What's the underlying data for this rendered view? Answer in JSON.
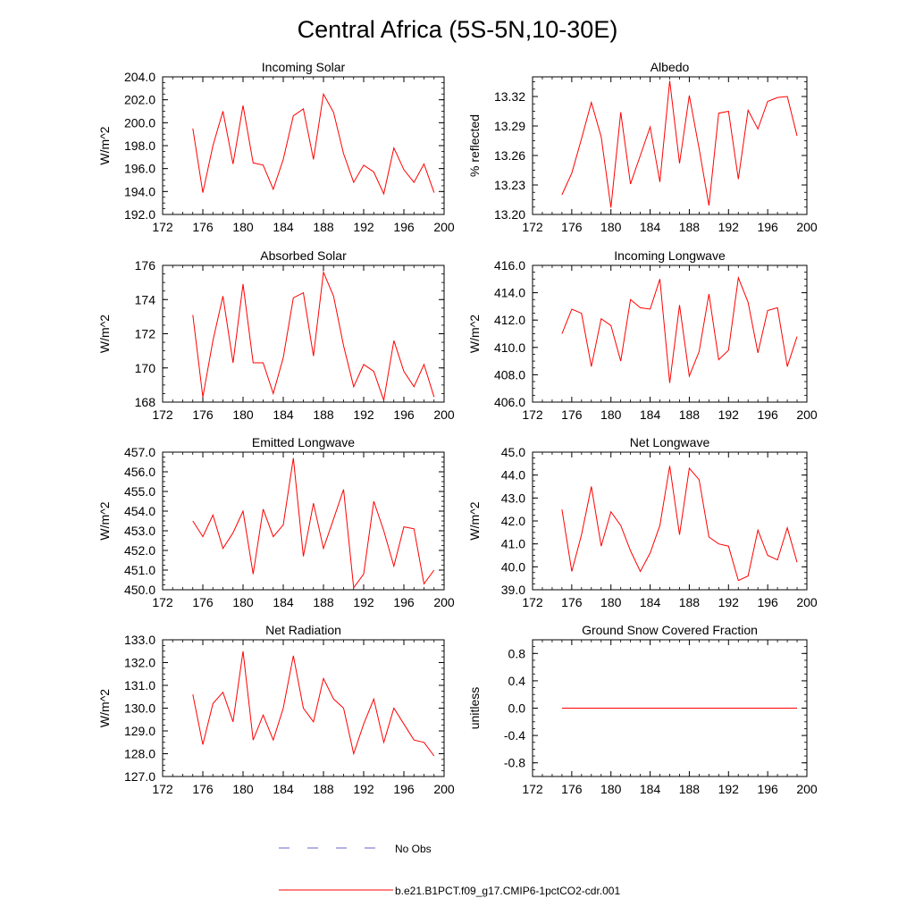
{
  "title": "Central Africa (5S-5N,10-30E)",
  "line_color": "#ff0000",
  "obs_color": "#6666cc",
  "legend": {
    "obs_label": "No Obs",
    "model_label": "b.e21.B1PCT.f09_g17.CMIP6-1pctCO2-cdr.001"
  },
  "chart_data": [
    {
      "type": "line",
      "title": "Incoming Solar",
      "ylabel": "W/m^2",
      "xlim": [
        172,
        200
      ],
      "ylim": [
        192,
        204
      ],
      "xticks": [
        172,
        176,
        180,
        184,
        188,
        192,
        196,
        200
      ],
      "yticks": [
        192,
        194,
        196,
        198,
        200,
        202,
        204
      ],
      "ytick_labels": [
        "192.0",
        "194.0",
        "196.0",
        "198.0",
        "200.0",
        "202.0",
        "204.0"
      ],
      "x": [
        175,
        176,
        177,
        178,
        179,
        180,
        181,
        182,
        183,
        184,
        185,
        186,
        187,
        188,
        189,
        190,
        191,
        192,
        193,
        194,
        195,
        196,
        197,
        198,
        199
      ],
      "values": [
        199.5,
        193.9,
        198.0,
        201.0,
        196.4,
        201.5,
        196.5,
        196.3,
        194.2,
        196.8,
        200.6,
        201.2,
        196.8,
        202.5,
        200.9,
        197.3,
        194.8,
        196.3,
        195.7,
        193.8,
        197.8,
        195.9,
        194.8,
        196.4,
        193.9
      ]
    },
    {
      "type": "line",
      "title": "Albedo",
      "ylabel": "% reflected",
      "xlim": [
        172,
        200
      ],
      "ylim": [
        13.2,
        13.34
      ],
      "xticks": [
        172,
        176,
        180,
        184,
        188,
        192,
        196,
        200
      ],
      "yticks": [
        13.2,
        13.23,
        13.26,
        13.29,
        13.32
      ],
      "ytick_labels": [
        "13.20",
        "13.23",
        "13.26",
        "13.29",
        "13.32"
      ],
      "x": [
        175,
        176,
        177,
        178,
        179,
        180,
        181,
        182,
        183,
        184,
        185,
        186,
        187,
        188,
        189,
        190,
        191,
        192,
        193,
        194,
        195,
        196,
        197,
        198,
        199
      ],
      "values": [
        13.22,
        13.242,
        13.277,
        13.314,
        13.279,
        13.207,
        13.304,
        13.231,
        13.26,
        13.289,
        13.233,
        13.336,
        13.252,
        13.321,
        13.267,
        13.209,
        13.303,
        13.305,
        13.236,
        13.306,
        13.287,
        13.315,
        13.319,
        13.32,
        13.28
      ]
    },
    {
      "type": "line",
      "title": "Absorbed Solar",
      "ylabel": "W/m^2",
      "xlim": [
        172,
        200
      ],
      "ylim": [
        168,
        176
      ],
      "xticks": [
        172,
        176,
        180,
        184,
        188,
        192,
        196,
        200
      ],
      "yticks": [
        168,
        170,
        172,
        174,
        176
      ],
      "ytick_labels": [
        "168",
        "170",
        "172",
        "174",
        "176"
      ],
      "x": [
        175,
        176,
        177,
        178,
        179,
        180,
        181,
        182,
        183,
        184,
        185,
        186,
        187,
        188,
        189,
        190,
        191,
        192,
        193,
        194,
        195,
        196,
        197,
        198,
        199
      ],
      "values": [
        173.1,
        168.3,
        171.6,
        174.2,
        170.3,
        174.9,
        170.3,
        170.3,
        168.5,
        170.6,
        174.1,
        174.4,
        170.7,
        175.6,
        174.2,
        171.3,
        168.9,
        170.2,
        169.8,
        168.1,
        171.6,
        169.8,
        168.9,
        170.2,
        168.3
      ]
    },
    {
      "type": "line",
      "title": "Incoming Longwave",
      "ylabel": "W/m^2",
      "xlim": [
        172,
        200
      ],
      "ylim": [
        406,
        416
      ],
      "xticks": [
        172,
        176,
        180,
        184,
        188,
        192,
        196,
        200
      ],
      "yticks": [
        406,
        408,
        410,
        412,
        414,
        416
      ],
      "ytick_labels": [
        "406.0",
        "408.0",
        "410.0",
        "412.0",
        "414.0",
        "416.0"
      ],
      "x": [
        175,
        176,
        177,
        178,
        179,
        180,
        181,
        182,
        183,
        184,
        185,
        186,
        187,
        188,
        189,
        190,
        191,
        192,
        193,
        194,
        195,
        196,
        197,
        198,
        199
      ],
      "values": [
        411.0,
        412.8,
        412.5,
        408.6,
        412.1,
        411.6,
        409.0,
        413.5,
        412.9,
        412.8,
        415.0,
        407.4,
        413.1,
        407.9,
        409.7,
        413.9,
        409.1,
        409.8,
        415.1,
        413.3,
        409.6,
        412.7,
        412.9,
        408.6,
        410.8
      ]
    },
    {
      "type": "line",
      "title": "Emitted Longwave",
      "ylabel": "W/m^2",
      "xlim": [
        172,
        200
      ],
      "ylim": [
        450,
        457
      ],
      "xticks": [
        172,
        176,
        180,
        184,
        188,
        192,
        196,
        200
      ],
      "yticks": [
        450,
        451,
        452,
        453,
        454,
        455,
        456,
        457
      ],
      "ytick_labels": [
        "450.0",
        "451.0",
        "452.0",
        "453.0",
        "454.0",
        "455.0",
        "456.0",
        "457.0"
      ],
      "x": [
        175,
        176,
        177,
        178,
        179,
        180,
        181,
        182,
        183,
        184,
        185,
        186,
        187,
        188,
        189,
        190,
        191,
        192,
        193,
        194,
        195,
        196,
        197,
        198,
        199
      ],
      "values": [
        453.5,
        452.7,
        453.8,
        452.1,
        452.9,
        454.0,
        450.8,
        454.1,
        452.7,
        453.3,
        456.7,
        451.7,
        454.4,
        452.1,
        453.6,
        455.1,
        450.1,
        450.8,
        454.5,
        453.0,
        451.2,
        453.2,
        453.1,
        450.3,
        451.0
      ]
    },
    {
      "type": "line",
      "title": "Net Longwave",
      "ylabel": "W/m^2",
      "xlim": [
        172,
        200
      ],
      "ylim": [
        39,
        45
      ],
      "xticks": [
        172,
        176,
        180,
        184,
        188,
        192,
        196,
        200
      ],
      "yticks": [
        39,
        40,
        41,
        42,
        43,
        44,
        45
      ],
      "ytick_labels": [
        "39.0",
        "40.0",
        "41.0",
        "42.0",
        "43.0",
        "44.0",
        "45.0"
      ],
      "x": [
        175,
        176,
        177,
        178,
        179,
        180,
        181,
        182,
        183,
        184,
        185,
        186,
        187,
        188,
        189,
        190,
        191,
        192,
        193,
        194,
        195,
        196,
        197,
        198,
        199
      ],
      "values": [
        42.5,
        39.8,
        41.4,
        43.5,
        40.9,
        42.4,
        41.8,
        40.7,
        39.8,
        40.6,
        41.8,
        44.4,
        41.4,
        44.3,
        43.8,
        41.3,
        41.0,
        40.9,
        39.4,
        39.6,
        41.6,
        40.5,
        40.3,
        41.7,
        40.2
      ]
    },
    {
      "type": "line",
      "title": "Net Radiation",
      "ylabel": "W/m^2",
      "xlim": [
        172,
        200
      ],
      "ylim": [
        127,
        133
      ],
      "xticks": [
        172,
        176,
        180,
        184,
        188,
        192,
        196,
        200
      ],
      "yticks": [
        127,
        128,
        129,
        130,
        131,
        132,
        133
      ],
      "ytick_labels": [
        "127.0",
        "128.0",
        "129.0",
        "130.0",
        "131.0",
        "132.0",
        "133.0"
      ],
      "x": [
        175,
        176,
        177,
        178,
        179,
        180,
        181,
        182,
        183,
        184,
        185,
        186,
        187,
        188,
        189,
        190,
        191,
        192,
        193,
        194,
        195,
        196,
        197,
        198,
        199
      ],
      "values": [
        130.6,
        128.4,
        130.2,
        130.7,
        129.4,
        132.5,
        128.6,
        129.7,
        128.6,
        130.0,
        132.3,
        130.0,
        129.4,
        131.3,
        130.4,
        130.0,
        128.0,
        129.3,
        130.4,
        128.5,
        130.0,
        129.3,
        128.6,
        128.5,
        127.9
      ]
    },
    {
      "type": "line",
      "title": "Ground Snow Covered Fraction",
      "ylabel": "unitless",
      "xlim": [
        172,
        200
      ],
      "ylim": [
        -1,
        1
      ],
      "xticks": [
        172,
        176,
        180,
        184,
        188,
        192,
        196,
        200
      ],
      "yticks": [
        -0.8,
        -0.4,
        0.0,
        0.4,
        0.8
      ],
      "ytick_labels": [
        "-0.8",
        "-0.4",
        "0.0",
        "0.4",
        "0.8"
      ],
      "x": [
        175,
        199
      ],
      "values": [
        0,
        0
      ]
    }
  ]
}
